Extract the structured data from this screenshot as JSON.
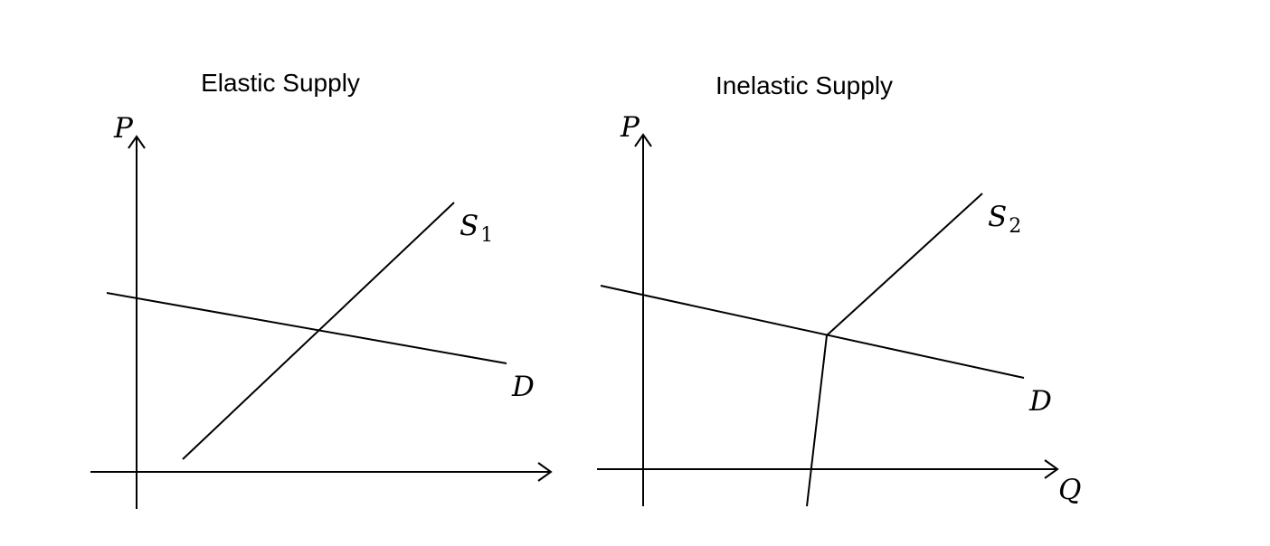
{
  "colors": {
    "background": "#ffffff",
    "ink": "#000000"
  },
  "panels": {
    "left": {
      "title": "Elastic Supply",
      "y_axis_label": "P",
      "x_axis_label": "",
      "supply_label": "S",
      "supply_subscript": "1",
      "demand_label": "D"
    },
    "right": {
      "title": "Inelastic Supply",
      "y_axis_label": "P",
      "x_axis_label": "Q",
      "supply_label": "S",
      "supply_subscript": "2",
      "demand_label": "D"
    }
  }
}
